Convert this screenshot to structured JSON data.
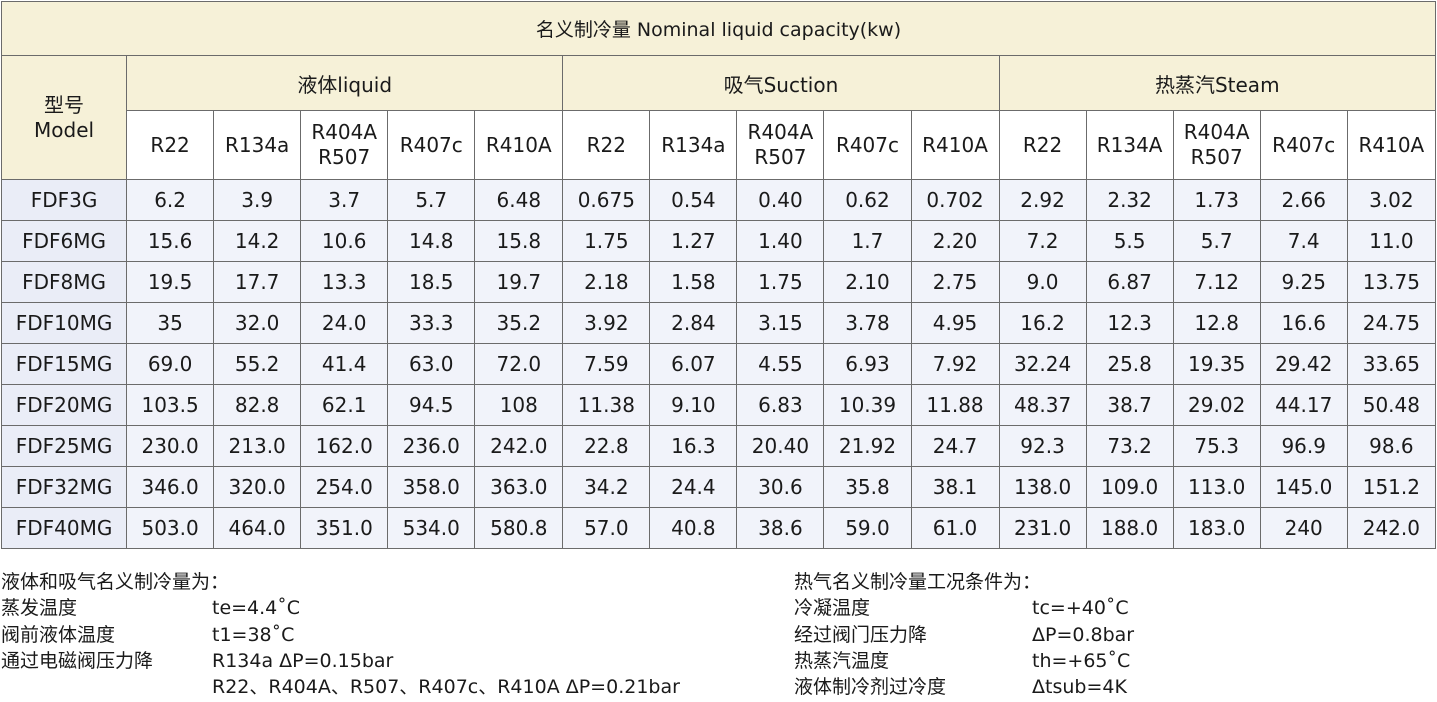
{
  "table": {
    "title": "名义制冷量 Nominal liquid capacity(kw)",
    "model_header_lines": [
      "型号",
      "Model"
    ],
    "groups": [
      {
        "label": "液体liquid",
        "refs": [
          [
            "R22"
          ],
          [
            "R134a"
          ],
          [
            "R404A",
            "R507"
          ],
          [
            "R407c"
          ],
          [
            "R410A"
          ]
        ]
      },
      {
        "label": "吸气Suction",
        "refs": [
          [
            "R22"
          ],
          [
            "R134a"
          ],
          [
            "R404A",
            "R507"
          ],
          [
            "R407c"
          ],
          [
            "R410A"
          ]
        ]
      },
      {
        "label": "热蒸汽Steam",
        "refs": [
          [
            "R22"
          ],
          [
            "R134A"
          ],
          [
            "R404A",
            "R507"
          ],
          [
            "R407c"
          ],
          [
            "R410A"
          ]
        ]
      }
    ],
    "rows": [
      {
        "model": "FDF3G",
        "values": [
          "6.2",
          "3.9",
          "3.7",
          "5.7",
          "6.48",
          "0.675",
          "0.54",
          "0.40",
          "0.62",
          "0.702",
          "2.92",
          "2.32",
          "1.73",
          "2.66",
          "3.02"
        ]
      },
      {
        "model": "FDF6MG",
        "values": [
          "15.6",
          "14.2",
          "10.6",
          "14.8",
          "15.8",
          "1.75",
          "1.27",
          "1.40",
          "1.7",
          "2.20",
          "7.2",
          "5.5",
          "5.7",
          "7.4",
          "11.0"
        ]
      },
      {
        "model": "FDF8MG",
        "values": [
          "19.5",
          "17.7",
          "13.3",
          "18.5",
          "19.7",
          "2.18",
          "1.58",
          "1.75",
          "2.10",
          "2.75",
          "9.0",
          "6.87",
          "7.12",
          "9.25",
          "13.75"
        ]
      },
      {
        "model": "FDF10MG",
        "values": [
          "35",
          "32.0",
          "24.0",
          "33.3",
          "35.2",
          "3.92",
          "2.84",
          "3.15",
          "3.78",
          "4.95",
          "16.2",
          "12.3",
          "12.8",
          "16.6",
          "24.75"
        ]
      },
      {
        "model": "FDF15MG",
        "values": [
          "69.0",
          "55.2",
          "41.4",
          "63.0",
          "72.0",
          "7.59",
          "6.07",
          "4.55",
          "6.93",
          "7.92",
          "32.24",
          "25.8",
          "19.35",
          "29.42",
          "33.65"
        ]
      },
      {
        "model": "FDF20MG",
        "values": [
          "103.5",
          "82.8",
          "62.1",
          "94.5",
          "108",
          "11.38",
          "9.10",
          "6.83",
          "10.39",
          "11.88",
          "48.37",
          "38.7",
          "29.02",
          "44.17",
          "50.48"
        ]
      },
      {
        "model": "FDF25MG",
        "values": [
          "230.0",
          "213.0",
          "162.0",
          "236.0",
          "242.0",
          "22.8",
          "16.3",
          "20.40",
          "21.92",
          "24.7",
          "92.3",
          "73.2",
          "75.3",
          "96.9",
          "98.6"
        ]
      },
      {
        "model": "FDF32MG",
        "values": [
          "346.0",
          "320.0",
          "254.0",
          "358.0",
          "363.0",
          "34.2",
          "24.4",
          "30.6",
          "35.8",
          "38.1",
          "138.0",
          "109.0",
          "113.0",
          "145.0",
          "151.2"
        ]
      },
      {
        "model": "FDF40MG",
        "values": [
          "503.0",
          "464.0",
          "351.0",
          "534.0",
          "580.8",
          "57.0",
          "40.8",
          "38.6",
          "59.0",
          "61.0",
          "231.0",
          "188.0",
          "183.0",
          "240",
          "242.0"
        ]
      }
    ]
  },
  "notes_left": {
    "heading": "液体和吸气名义制冷量为：",
    "lines": [
      {
        "label": "蒸发温度",
        "value": "te=4.4˚C"
      },
      {
        "label": "阀前液体温度",
        "value": "t1=38˚C"
      },
      {
        "label": "通过电磁阀压力降",
        "value": "R134a  ΔP=0.15bar"
      },
      {
        "label": "",
        "value": "R22、R404A、R507、R407c、R410A  ΔP=0.21bar"
      }
    ]
  },
  "notes_right": {
    "heading": "热气名义制冷量工况条件为：",
    "lines": [
      {
        "label": "冷凝温度",
        "value": "tc=+40˚C"
      },
      {
        "label": "经过阀门压力降",
        "value": " ΔP=0.8bar"
      },
      {
        "label": "热蒸汽温度",
        "value": "th=+65˚C"
      },
      {
        "label": "液体制冷剂过冷度",
        "value": " Δtsub=4K"
      }
    ]
  }
}
